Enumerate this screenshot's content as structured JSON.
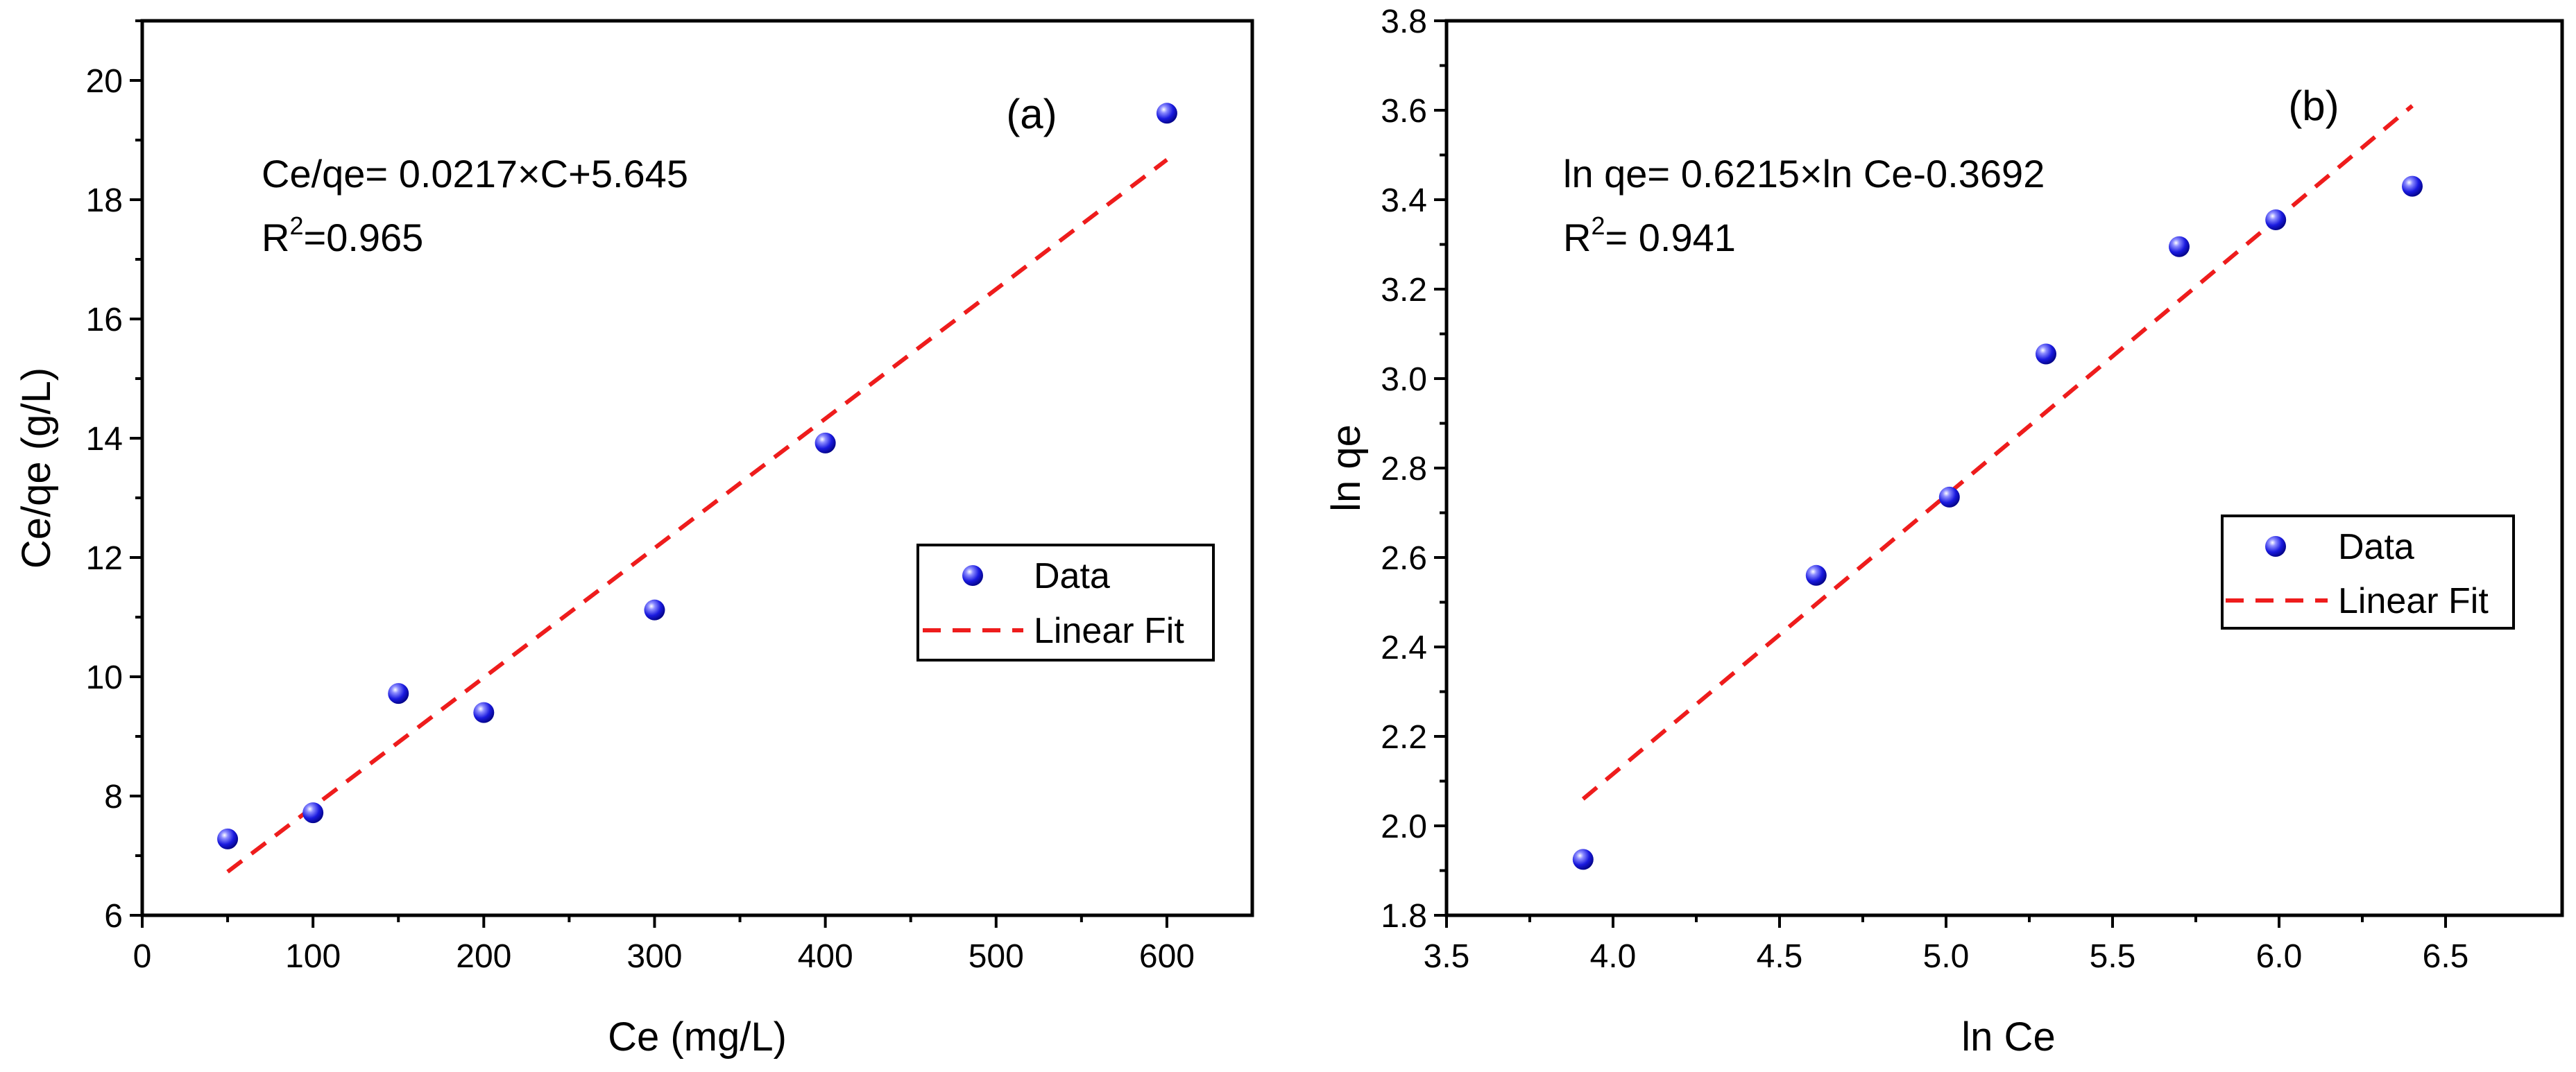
{
  "colors": {
    "point": "#1a1adf",
    "fit": "#ee1c1c",
    "axis": "#000000"
  },
  "chart_data": [
    {
      "type": "scatter",
      "panel_label": "(a)",
      "xlabel": "Ce (mg/L)",
      "ylabel": "Ce/qe (g/L)",
      "xlim": [
        0,
        650
      ],
      "ylim": [
        6,
        21
      ],
      "xticks": [
        0,
        100,
        200,
        300,
        400,
        500,
        600
      ],
      "xtick_labels": [
        "0",
        "100",
        "200",
        "300",
        "400",
        "500",
        "600"
      ],
      "yticks": [
        6,
        8,
        10,
        12,
        14,
        16,
        18,
        20
      ],
      "ytick_labels": [
        "6",
        "8",
        "10",
        "12",
        "14",
        "16",
        "18",
        "20"
      ],
      "equation": "Ce/qe= 0.0217×C+5.645",
      "r2_prefix": "R",
      "r2_sup": "2",
      "r2_value": "=0.965",
      "series": [
        {
          "name": "Data",
          "kind": "points",
          "x": [
            50,
            100,
            150,
            200,
            300,
            400,
            600
          ],
          "y": [
            7.28,
            7.72,
            9.72,
            9.4,
            11.12,
            13.92,
            19.45
          ]
        },
        {
          "name": "Linear Fit",
          "kind": "line",
          "x": [
            50,
            600
          ],
          "y": [
            6.73,
            18.67
          ]
        }
      ],
      "legend": {
        "position": "right-middle",
        "entries": [
          "Data",
          "Linear Fit"
        ]
      }
    },
    {
      "type": "scatter",
      "panel_label": "(b)",
      "xlabel": "ln Ce",
      "ylabel": "ln qe",
      "xlim": [
        3.5,
        6.85
      ],
      "ylim": [
        1.8,
        3.8
      ],
      "xticks": [
        3.5,
        4.0,
        4.5,
        5.0,
        5.5,
        6.0,
        6.5
      ],
      "xtick_labels": [
        "3.5",
        "4.0",
        "4.5",
        "5.0",
        "5.5",
        "6.0",
        "6.5"
      ],
      "yticks": [
        1.8,
        2.0,
        2.2,
        2.4,
        2.6,
        2.8,
        3.0,
        3.2,
        3.4,
        3.6,
        3.8
      ],
      "ytick_labels": [
        "1.8",
        "2.0",
        "2.2",
        "2.4",
        "2.6",
        "2.8",
        "3.0",
        "3.2",
        "3.4",
        "3.6",
        "3.8"
      ],
      "equation": "ln qe= 0.6215×ln Ce-0.3692",
      "r2_prefix": "R",
      "r2_sup": "2",
      "r2_value": "= 0.941",
      "series": [
        {
          "name": "Data",
          "kind": "points",
          "x": [
            3.91,
            4.61,
            5.01,
            5.3,
            5.7,
            5.99,
            6.4
          ],
          "y": [
            1.925,
            2.56,
            2.735,
            3.055,
            3.295,
            3.355,
            3.43
          ]
        },
        {
          "name": "Linear Fit",
          "kind": "line",
          "x": [
            3.91,
            6.4
          ],
          "y": [
            2.06,
            3.61
          ]
        }
      ],
      "legend": {
        "position": "right-middle",
        "entries": [
          "Data",
          "Linear Fit"
        ]
      }
    }
  ]
}
